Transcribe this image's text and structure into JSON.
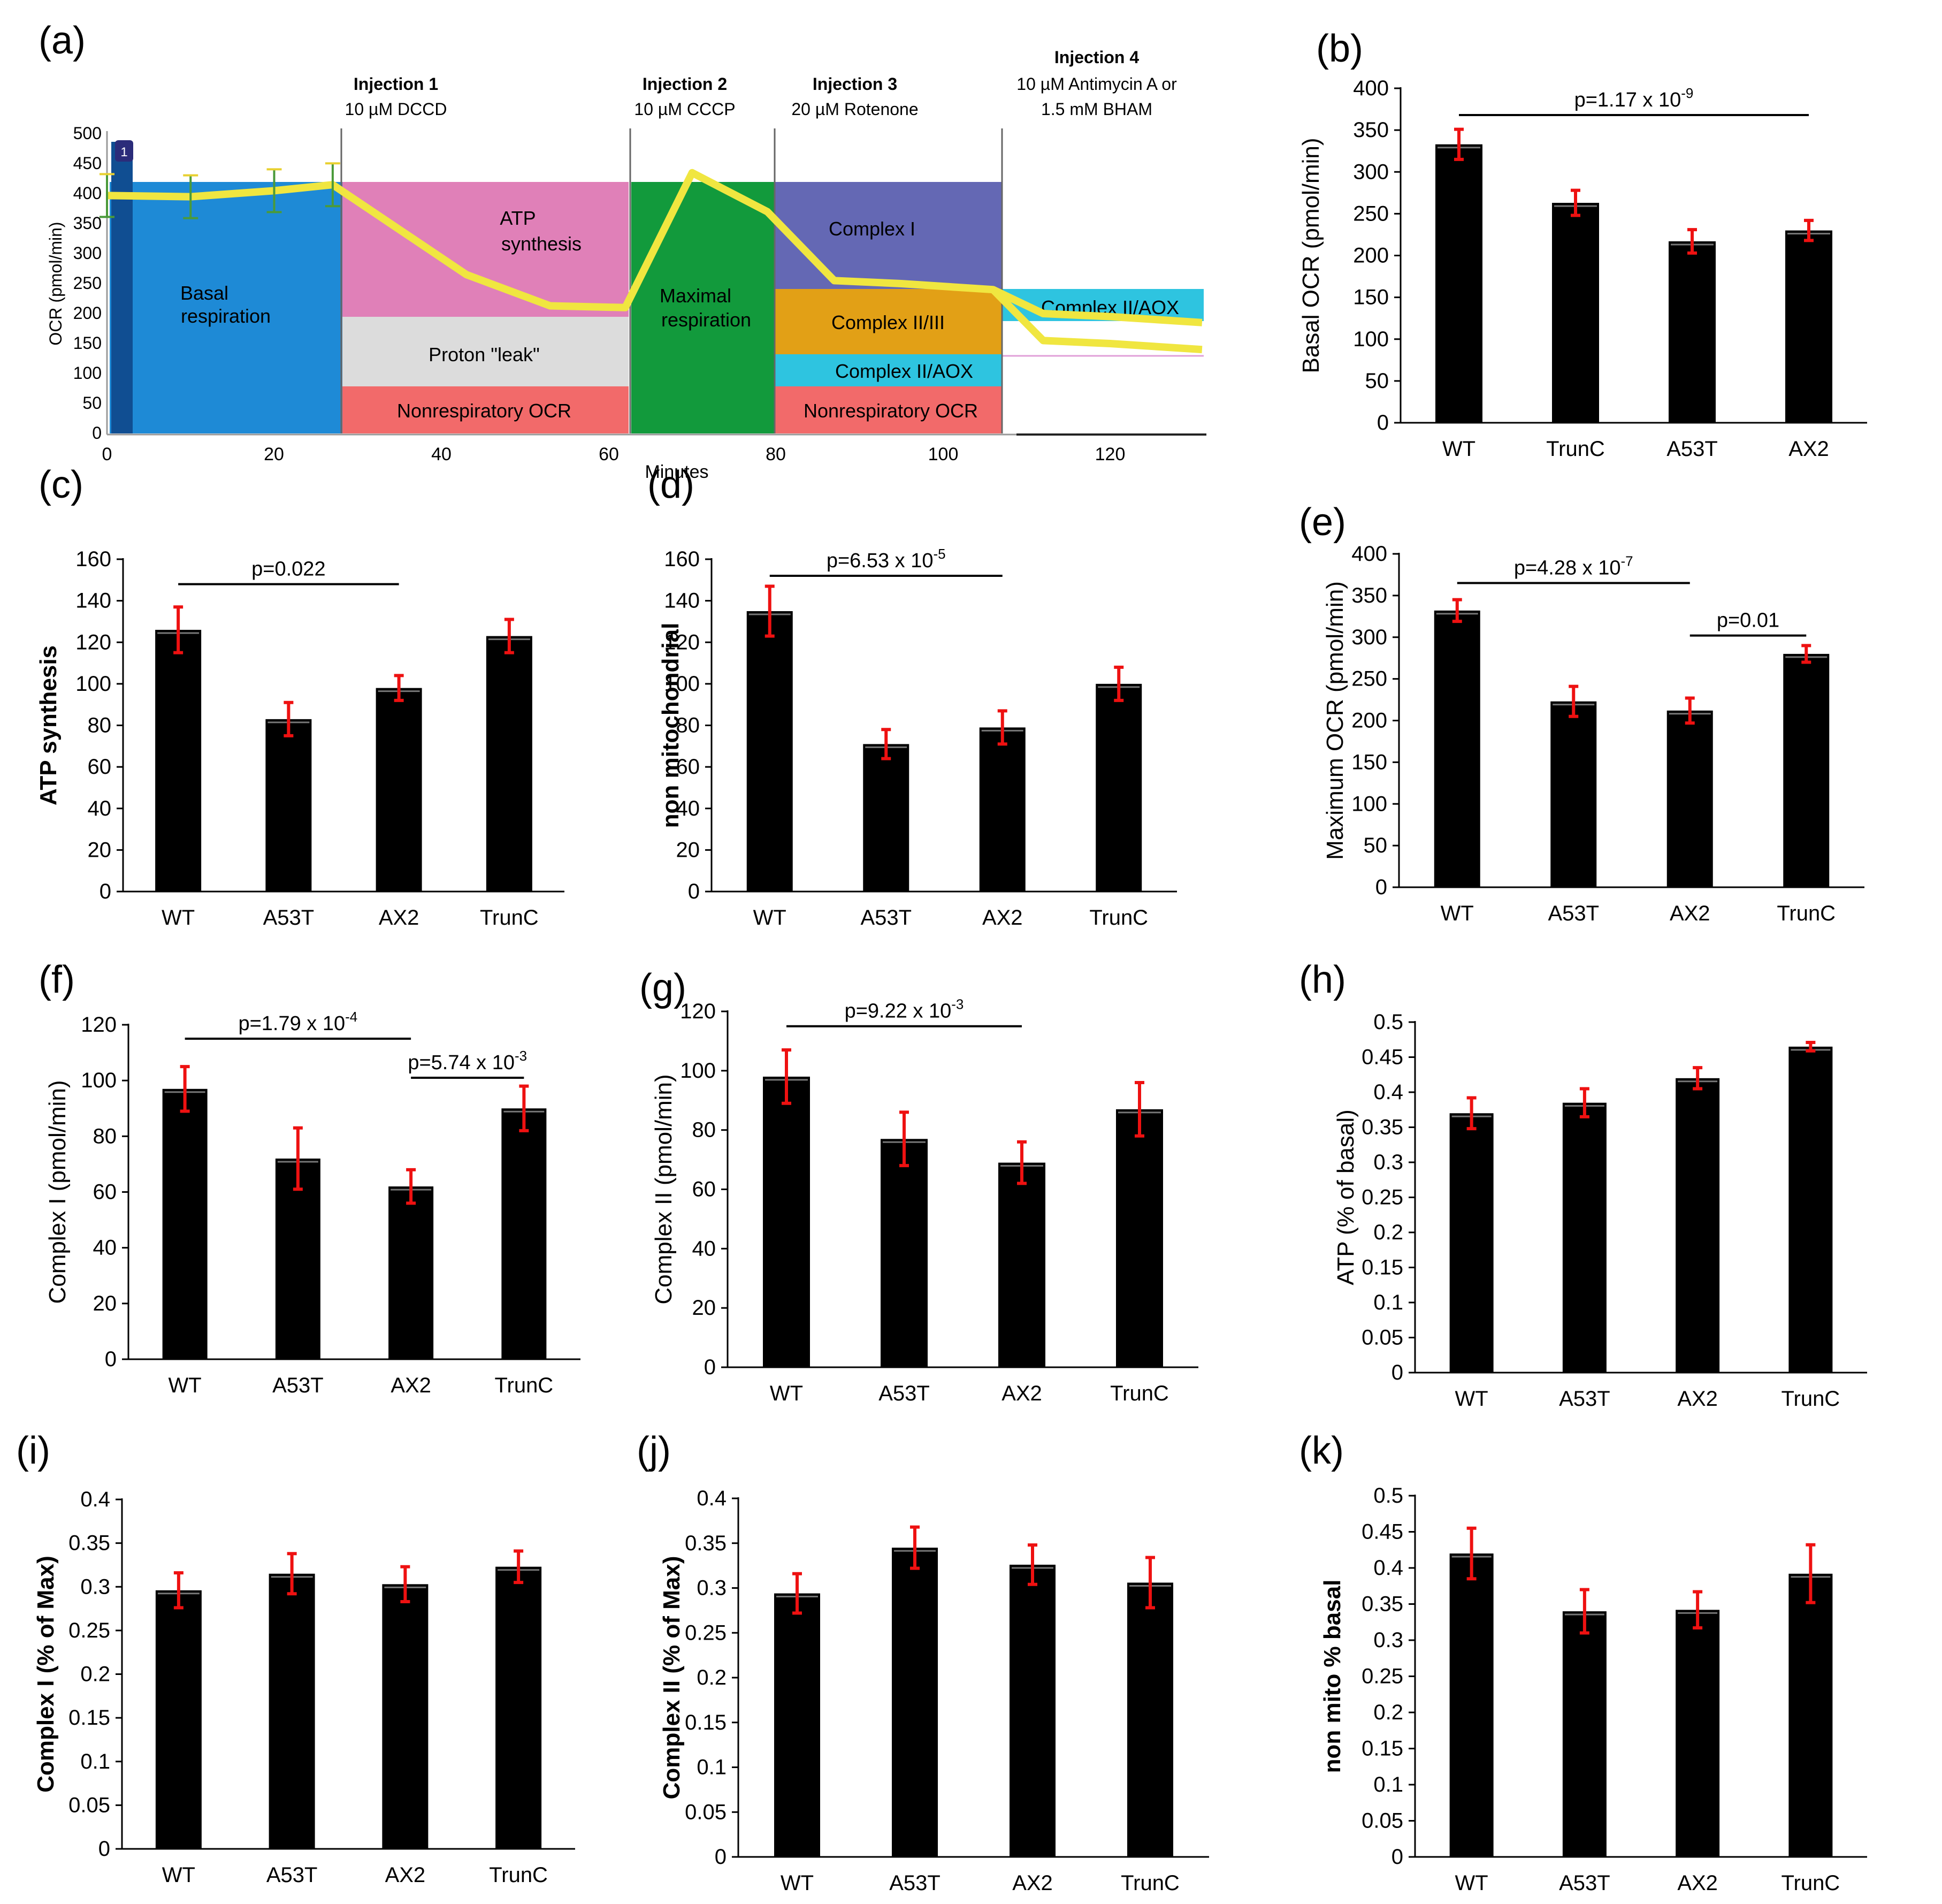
{
  "figure": {
    "panel_a": {
      "label": "(a)",
      "y_ticks": [
        "500",
        "450",
        "400",
        "350",
        "300",
        "250",
        "200",
        "150",
        "100",
        "50",
        "0"
      ],
      "x_ticks": [
        "0",
        "20",
        "40",
        "60",
        "80",
        "100",
        "120"
      ],
      "ylabel": "OCR (pmol/min)",
      "xlabel": "Minutes",
      "marker": "1",
      "injections": [
        {
          "title": "Injection 1",
          "detail": "10 µM DCCD"
        },
        {
          "title": "Injection 2",
          "detail": "10 µM CCCP"
        },
        {
          "title": "Injection 3",
          "detail": "20 µM Rotenone"
        },
        {
          "title": "Injection 4",
          "detail": "10 µM Antimycin A or",
          "detail2": "1.5 mM BHAM"
        }
      ],
      "regions": {
        "basal_1": "Basal",
        "basal_2": "respiration",
        "atp_1": "ATP",
        "atp_2": "synthesis",
        "leak": "Proton \"leak\"",
        "nonresp1": "Nonrespiratory OCR",
        "max_1": "Maximal",
        "max_2": "respiration",
        "complex1": "Complex I",
        "complex23": "Complex II/III",
        "complex_aox": "Complex II/AOX",
        "nonresp2": "Nonrespiratory OCR",
        "complex_aox2": "Complex II/AOX"
      },
      "colors": {
        "basal": "#1e8ad6",
        "atp": "#e080b8",
        "leak": "#dcdcdc",
        "nonresp": "#f26a6a",
        "maximal": "#129a3c",
        "complex1": "#6468b4",
        "complex23": "#e2a016",
        "aox": "#2ec4e0",
        "trace": "#f0e640"
      }
    },
    "bar_color": "#000000",
    "err_color": "#ee1111"
  },
  "chart_data": [
    {
      "id": "a",
      "type": "line",
      "title": "",
      "xlabel": "Minutes",
      "ylabel": "OCR (pmol/min)",
      "xlim": [
        0,
        132
      ],
      "ylim": [
        0,
        500
      ],
      "series": [
        {
          "name": "OCR trace",
          "x": [
            0,
            10,
            20,
            27,
            43,
            53,
            62,
            70,
            79,
            87,
            95,
            106,
            112,
            120,
            131
          ],
          "y": [
            397,
            395,
            405,
            415,
            265,
            213,
            210,
            435,
            370,
            255,
            250,
            240,
            155,
            150,
            140
          ]
        },
        {
          "name": "OCR trace (Complex II/AOX)",
          "x": [
            106,
            112,
            120,
            131
          ],
          "y": [
            240,
            200,
            195,
            185
          ]
        }
      ]
    },
    {
      "id": "b",
      "label": "(b)",
      "type": "bar",
      "title": "",
      "ylabel": "Basal OCR (pmol/min)",
      "ylim": [
        0,
        400
      ],
      "yticks": [
        0,
        50,
        100,
        150,
        200,
        250,
        300,
        350,
        400
      ],
      "categories": [
        "WT",
        "TrunC",
        "A53T",
        "AX2"
      ],
      "values": [
        333,
        263,
        217,
        230
      ],
      "errors": [
        18,
        15,
        14,
        12
      ],
      "annotations": [
        {
          "text": "p=1.17 x 10",
          "sup": "-9",
          "from": 0,
          "to": 3,
          "y": 368
        }
      ]
    },
    {
      "id": "c",
      "label": "(c)",
      "type": "bar",
      "title": "",
      "ylabel": "ATP synthesis",
      "ylim": [
        0,
        160
      ],
      "yticks": [
        0,
        20,
        40,
        60,
        80,
        100,
        120,
        140,
        160
      ],
      "categories": [
        "WT",
        "A53T",
        "AX2",
        "TrunC"
      ],
      "values": [
        126,
        83,
        98,
        123
      ],
      "errors": [
        11,
        8,
        6,
        8
      ],
      "annotations": [
        {
          "text": "p=0.022",
          "sup": "",
          "from": 0,
          "to": 2,
          "y": 148
        }
      ]
    },
    {
      "id": "d",
      "label": "(d)",
      "type": "bar",
      "title": "",
      "ylabel": "non mitochondrial",
      "ylim": [
        0,
        160
      ],
      "yticks": [
        0,
        20,
        40,
        60,
        80,
        100,
        120,
        140,
        160
      ],
      "categories": [
        "WT",
        "A53T",
        "AX2",
        "TrunC"
      ],
      "values": [
        135,
        71,
        79,
        100
      ],
      "errors": [
        12,
        7,
        8,
        8
      ],
      "annotations": [
        {
          "text": "p=6.53 x 10",
          "sup": "-5",
          "from": 0,
          "to": 2,
          "y": 152
        }
      ]
    },
    {
      "id": "e",
      "label": "(e)",
      "type": "bar",
      "title": "",
      "ylabel": "Maximum OCR (pmol/min)",
      "ylim": [
        0,
        400
      ],
      "yticks": [
        0,
        50,
        100,
        150,
        200,
        250,
        300,
        350,
        400
      ],
      "categories": [
        "WT",
        "A53T",
        "AX2",
        "TrunC"
      ],
      "values": [
        332,
        223,
        212,
        280
      ],
      "errors": [
        13,
        18,
        15,
        10
      ],
      "annotations": [
        {
          "text": "p=4.28 x 10",
          "sup": "-7",
          "from": 0,
          "to": 2,
          "y": 365
        },
        {
          "text": "p=0.01",
          "sup": "",
          "from": 2,
          "to": 3,
          "y": 302
        }
      ]
    },
    {
      "id": "f",
      "label": "(f)",
      "type": "bar",
      "title": "",
      "ylabel": "Complex I (pmol/min)",
      "ylim": [
        0,
        120
      ],
      "yticks": [
        0,
        20,
        40,
        60,
        80,
        100,
        120
      ],
      "categories": [
        "WT",
        "A53T",
        "AX2",
        "TrunC"
      ],
      "values": [
        97,
        72,
        62,
        90
      ],
      "errors": [
        8,
        11,
        6,
        8
      ],
      "annotations": [
        {
          "text": "p=1.79 x 10",
          "sup": "-4",
          "from": 0,
          "to": 2,
          "y": 115
        },
        {
          "text": "p=5.74 x 10",
          "sup": "-3",
          "from": 2,
          "to": 3,
          "y": 101
        }
      ]
    },
    {
      "id": "g",
      "label": "(g)",
      "type": "bar",
      "title": "",
      "ylabel": "Complex II (pmol/min)",
      "ylim": [
        0,
        120
      ],
      "yticks": [
        0,
        20,
        40,
        60,
        80,
        100,
        120
      ],
      "categories": [
        "WT",
        "A53T",
        "AX2",
        "TrunC"
      ],
      "values": [
        98,
        77,
        69,
        87
      ],
      "errors": [
        9,
        9,
        7,
        9
      ],
      "annotations": [
        {
          "text": "p=9.22 x 10",
          "sup": "-3",
          "from": 0,
          "to": 2,
          "y": 115
        }
      ]
    },
    {
      "id": "h",
      "label": "(h)",
      "type": "bar",
      "title": "",
      "ylabel": "ATP (% of basal)",
      "ylim": [
        0,
        0.5
      ],
      "yticks": [
        "0",
        "0.05",
        "0.1",
        "0.15",
        "0.2",
        "0.25",
        "0.3",
        "0.35",
        "0.4",
        "0.45",
        "0.5"
      ],
      "categories": [
        "WT",
        "A53T",
        "AX2",
        "TrunC"
      ],
      "values": [
        0.37,
        0.385,
        0.42,
        0.465
      ],
      "errors": [
        0.022,
        0.02,
        0.015,
        0.006
      ],
      "annotations": []
    },
    {
      "id": "i",
      "label": "(i)",
      "type": "bar",
      "title": "",
      "ylabel": "Complex I (% of Max)",
      "ylim": [
        0,
        0.4
      ],
      "yticks": [
        "0",
        "0.05",
        "0.1",
        "0.15",
        "0.2",
        "0.25",
        "0.3",
        "0.35",
        "0.4"
      ],
      "categories": [
        "WT",
        "A53T",
        "AX2",
        "TrunC"
      ],
      "values": [
        0.296,
        0.315,
        0.303,
        0.323
      ],
      "errors": [
        0.02,
        0.023,
        0.02,
        0.018
      ],
      "annotations": []
    },
    {
      "id": "j",
      "label": "(j)",
      "type": "bar",
      "title": "",
      "ylabel": "Complex II (% of Max)",
      "ylim": [
        0,
        0.4
      ],
      "yticks": [
        "0",
        "0.05",
        "0.1",
        "0.15",
        "0.2",
        "0.25",
        "0.3",
        "0.35",
        "0.4"
      ],
      "categories": [
        "WT",
        "A53T",
        "AX2",
        "TrunC"
      ],
      "values": [
        0.294,
        0.345,
        0.326,
        0.306
      ],
      "errors": [
        0.022,
        0.023,
        0.022,
        0.028
      ],
      "annotations": []
    },
    {
      "id": "k",
      "label": "(k)",
      "type": "bar",
      "title": "",
      "ylabel": "non mito % basal",
      "ylim": [
        0,
        0.5
      ],
      "yticks": [
        "0",
        "0.05",
        "0.1",
        "0.15",
        "0.2",
        "0.25",
        "0.3",
        "0.35",
        "0.4",
        "0.45",
        "0.5"
      ],
      "categories": [
        "WT",
        "A53T",
        "AX2",
        "TrunC"
      ],
      "values": [
        0.42,
        0.34,
        0.342,
        0.392
      ],
      "errors": [
        0.035,
        0.03,
        0.025,
        0.04
      ],
      "annotations": []
    }
  ]
}
